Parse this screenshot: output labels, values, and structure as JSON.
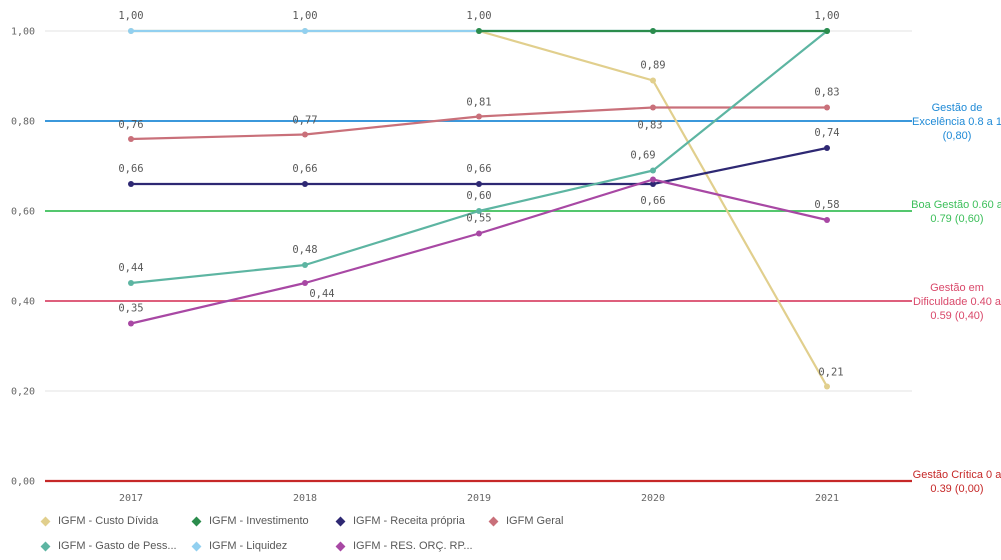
{
  "chart_data": {
    "type": "line",
    "x": [
      "2017",
      "2018",
      "2019",
      "2020",
      "2021"
    ],
    "y_ticks": [
      "0,00",
      "0,20",
      "0,40",
      "0,60",
      "0,80",
      "1,00"
    ],
    "ylim": [
      0,
      1
    ],
    "grid": true,
    "legend_position": "bottom",
    "series": [
      {
        "name": "IGFM - Custo Dívida",
        "color": "#e1cf8d",
        "values": [
          1.0,
          1.0,
          1.0,
          0.89,
          0.21
        ],
        "labels": [
          "1,00",
          "1,00",
          "1,00",
          "0,89",
          "0,21"
        ]
      },
      {
        "name": "IGFM - Investimento",
        "color": "#2b8c4c",
        "values": [
          null,
          null,
          1.0,
          1.0,
          1.0
        ],
        "labels": [
          "",
          "",
          "",
          "",
          ""
        ]
      },
      {
        "name": "IGFM - Receita própria",
        "color": "#2e2873",
        "values": [
          0.66,
          0.66,
          0.66,
          0.66,
          0.74
        ],
        "labels": [
          "0,66",
          "0,66",
          "0,66",
          "0,66",
          "0,74"
        ]
      },
      {
        "name": "IGFM Geral",
        "color": "#c9707a",
        "values": [
          0.76,
          0.77,
          0.81,
          0.83,
          0.83
        ],
        "labels": [
          "0,76",
          "0,77",
          "0,81",
          "0,83",
          "0,83"
        ]
      },
      {
        "name": "IGFM - Gasto de Pess...",
        "color": "#5db5a2",
        "values": [
          0.44,
          0.48,
          0.6,
          0.69,
          1.0
        ],
        "labels": [
          "0,44",
          "0,48",
          "0,60",
          "0,69",
          "1,00"
        ]
      },
      {
        "name": "IGFM - Liquidez",
        "color": "#92d0f0",
        "values": [
          1.0,
          1.0,
          1.0,
          1.0,
          1.0
        ],
        "labels": [
          "",
          "",
          "",
          "",
          ""
        ]
      },
      {
        "name": "IGFM - RES. ORÇ. RP...",
        "color": "#a848a4",
        "values": [
          0.35,
          0.44,
          0.55,
          0.67,
          0.58
        ],
        "labels": [
          "0,35",
          "0,44",
          "0,55",
          "",
          "0,58"
        ]
      }
    ],
    "reference_lines": [
      {
        "value": 0.8,
        "color": "#1f8ad6",
        "label_lines": [
          "Gestão de",
          "Excelência 0.8 a 1",
          "(0,80)"
        ]
      },
      {
        "value": 0.6,
        "color": "#3cbf5a",
        "label_lines": [
          "Boa Gestão 0.60 a",
          "0.79 (0,60)"
        ]
      },
      {
        "value": 0.4,
        "color": "#d9486a",
        "label_lines": [
          "Gestão em",
          "Dificuldade 0.40 a",
          "0.59 (0,40)"
        ]
      },
      {
        "value": 0.0,
        "color": "#c62828",
        "label_lines": [
          "Gestão Crítica 0 a",
          "0.39 (0,00)"
        ]
      }
    ]
  }
}
